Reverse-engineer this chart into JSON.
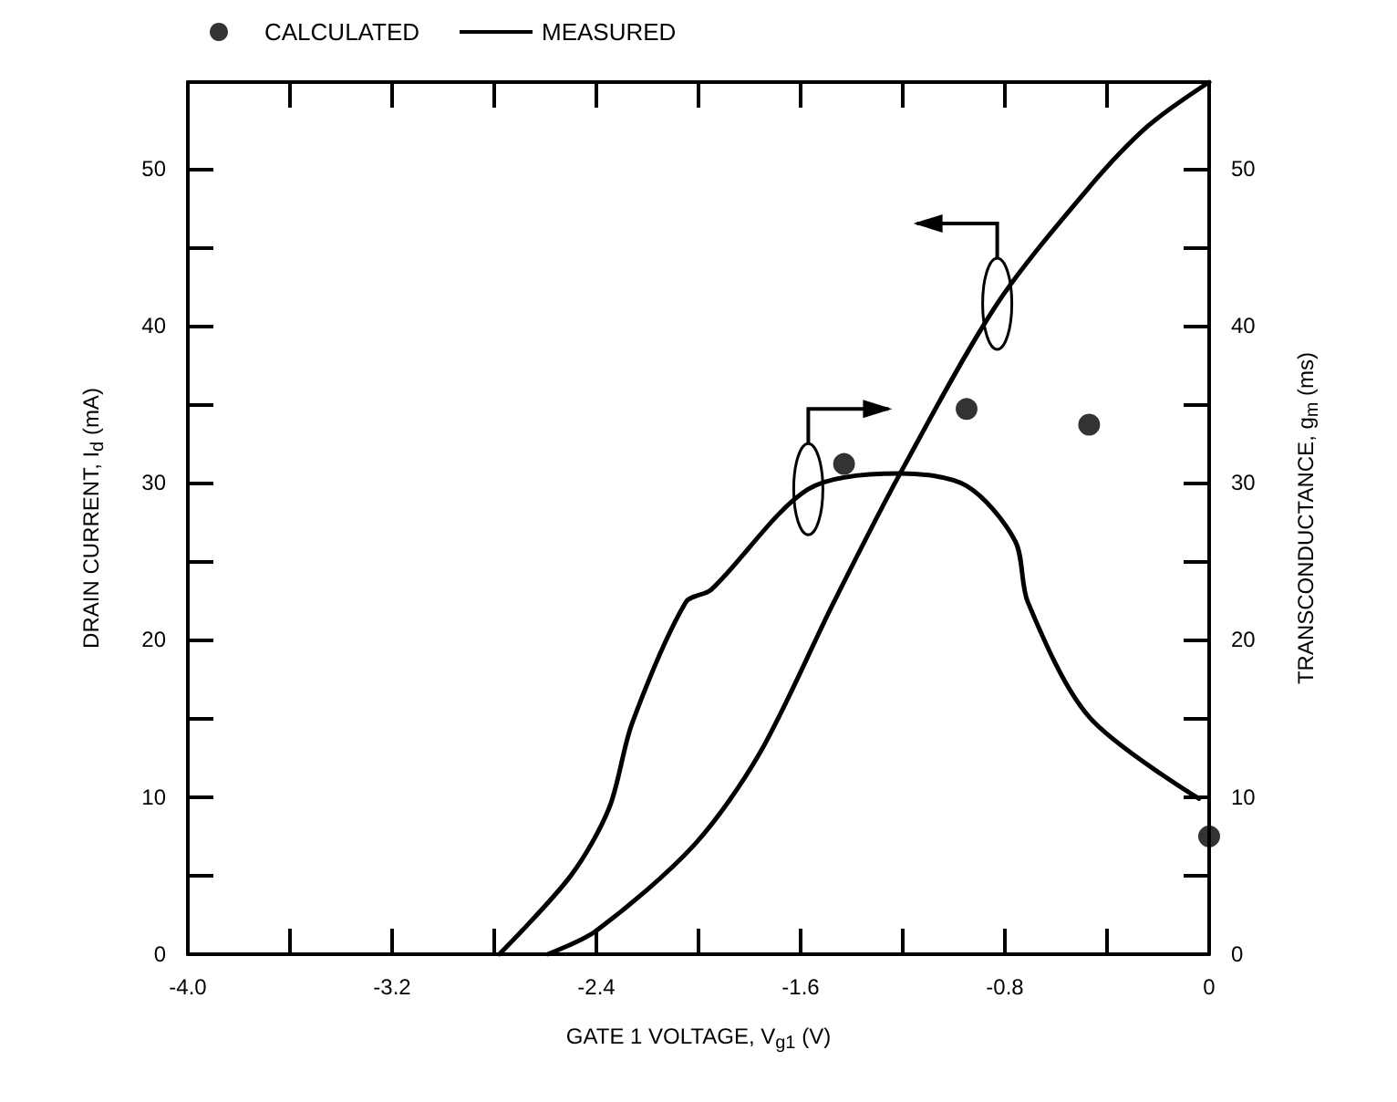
{
  "chart_data": {
    "type": "line",
    "xlabel": "GATE 1 VOLTAGE, V$_{g1}$ (V)",
    "ylabel": "DRAIN CURRENT, I$_{d}$ (mA)",
    "y2label": "TRANSCONDUCTANCE, g$_{m}$ (ms)",
    "xlim": [
      -4.0,
      0
    ],
    "xticks": [
      {
        "value": -4.0,
        "label": "-4.0"
      },
      {
        "value": -3.6,
        "label": null
      },
      {
        "value": -3.2,
        "label": "-3.2"
      },
      {
        "value": -2.8,
        "label": null
      },
      {
        "value": -2.4,
        "label": "-2.4"
      },
      {
        "value": -2.0,
        "label": null
      },
      {
        "value": -1.6,
        "label": "-1.6"
      },
      {
        "value": -1.2,
        "label": null
      },
      {
        "value": -0.8,
        "label": "-0.8"
      },
      {
        "value": -0.4,
        "label": null
      },
      0
    ],
    "ylim": [
      0,
      55.5
    ],
    "yticks": [
      0,
      {
        "value": 5,
        "label": null
      },
      10,
      {
        "value": 15,
        "label": null
      },
      20,
      {
        "value": 25,
        "label": null
      },
      30,
      {
        "value": 35,
        "label": null
      },
      40,
      {
        "value": 45,
        "label": null
      },
      50
    ],
    "y2lim": [
      0,
      55.5
    ],
    "y2ticks": [
      0,
      {
        "value": 5,
        "label": null
      },
      10,
      {
        "value": 15,
        "label": null
      },
      20,
      {
        "value": 25,
        "label": null
      },
      30,
      {
        "value": 35,
        "label": null
      },
      40,
      {
        "value": 45,
        "label": null
      },
      50
    ],
    "grid": false,
    "legend": "top left",
    "series": [
      {
        "name": "CALCULATED",
        "type": "scatter",
        "marker": "circle",
        "axis": "y2",
        "color": "#000000",
        "x": [
          -1.43,
          -0.95,
          -0.47,
          0
        ],
        "values": [
          31.2,
          34.7,
          33.7,
          7.5
        ]
      },
      {
        "name": "MEASURED",
        "marker": "none",
        "color": "#000000",
        "x": [
          -2.59,
          -2.4,
          -2.02,
          -1.76,
          -1.47,
          -1.21,
          -0.83,
          -0.47,
          -0.24,
          0
        ],
        "values": [
          0,
          1.5,
          6.9,
          12.8,
          22.4,
          30.6,
          41.4,
          48.8,
          52.7,
          55.5
        ]
      },
      {
        "marker": "none",
        "axis": "y2",
        "color": "#000000",
        "x": [
          -2.78,
          -2.5,
          -2.35,
          -2.26,
          -2.05,
          -1.95,
          -1.57,
          -1.21,
          -0.95,
          -0.76,
          -0.71,
          -0.47,
          -0.04
        ],
        "values": [
          0,
          5.0,
          9.3,
          14.7,
          22.4,
          23.2,
          29.6,
          30.6,
          29.8,
          26.3,
          22.4,
          15.1,
          9.9
        ]
      }
    ]
  }
}
